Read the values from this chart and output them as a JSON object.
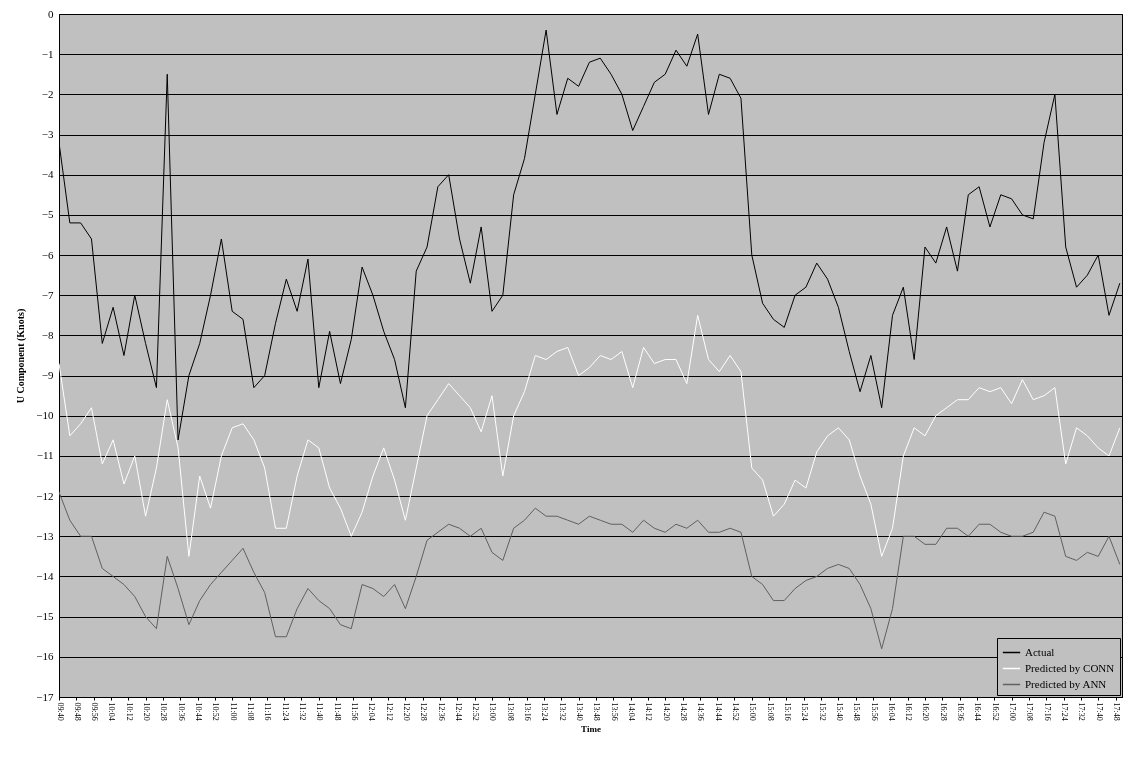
{
  "chart_data": {
    "type": "line",
    "xlabel": "Time",
    "ylabel": "U Component (Knots)",
    "x": [
      9.6667,
      9.75,
      9.8333,
      9.9167,
      10,
      10.0833,
      10.1667,
      10.25,
      10.3333,
      10.4167,
      10.5,
      10.5833,
      10.6667,
      10.75,
      10.8333,
      10.9167,
      11,
      11.0833,
      11.1667,
      11.25,
      11.3333,
      11.4167,
      11.5,
      11.5833,
      11.6667,
      11.75,
      11.8333,
      11.9167,
      12,
      12.0833,
      12.1667,
      12.25,
      12.3333,
      12.4167,
      12.5,
      12.5833,
      12.6667,
      12.75,
      12.8333,
      12.9167,
      13,
      13.0833,
      13.1667,
      13.25,
      13.3333,
      13.4167,
      13.5,
      13.5833,
      13.6667,
      13.75,
      13.8333,
      13.9167,
      14,
      14.0833,
      14.1667,
      14.25,
      14.3333,
      14.4167,
      14.5,
      14.5833,
      14.6667,
      14.75,
      14.8333,
      14.9167,
      15,
      15.0833,
      15.1667,
      15.25,
      15.3333,
      15.4167,
      15.5,
      15.5833,
      15.6667,
      15.75,
      15.8333,
      15.9167,
      16,
      16.0833,
      16.1667,
      16.25,
      16.3333,
      16.4167,
      16.5,
      16.5833,
      16.6667,
      16.75,
      16.8333,
      16.9167,
      17,
      17.0833,
      17.1667,
      17.25,
      17.3333,
      17.4167,
      17.5,
      17.5833,
      17.6667,
      17.75,
      17.8333
    ],
    "series": [
      {
        "name": "Actual",
        "color": "#000000",
        "values": [
          -3.2,
          -5.2,
          -5.2,
          -5.6,
          -8.2,
          -7.3,
          -8.5,
          -7.0,
          -8.2,
          -9.3,
          -1.5,
          -10.6,
          -9,
          -8.2,
          -7,
          -5.6,
          -7.4,
          -7.6,
          -9.3,
          -9,
          -7.7,
          -6.6,
          -7.4,
          -6.1,
          -9.3,
          -7.9,
          -9.2,
          -8.1,
          -6.3,
          -7,
          -7.9,
          -8.6,
          -9.8,
          -6.4,
          -5.8,
          -4.3,
          -4,
          -5.6,
          -6.7,
          -5.3,
          -7.4,
          -7,
          -4.5,
          -3.6,
          -2,
          -0.4,
          -2.5,
          -1.6,
          -1.8,
          -1.2,
          -1.1,
          -1.5,
          -2,
          -2.9,
          -2.3,
          -1.7,
          -1.5,
          -0.9,
          -1.3,
          -0.5,
          -2.5,
          -1.5,
          -1.6,
          -2.1,
          -6,
          -7.2,
          -7.6,
          -7.8,
          -7,
          -6.8,
          -6.2,
          -6.6,
          -7.3,
          -8.4,
          -9.4,
          -8.5,
          -9.8,
          -7.5,
          -6.8,
          -8.6,
          -5.8,
          -6.2,
          -5.3,
          -6.4,
          -4.5,
          -4.3,
          -5.3,
          -4.5,
          -4.6,
          -5,
          -5.1,
          -3.2,
          -2,
          -5.8,
          -6.8,
          -6.5,
          -6,
          -7.5,
          -6.7
        ]
      },
      {
        "name": "Predicted by CONN",
        "color": "#ffffff",
        "values": [
          -8.7,
          -10.5,
          -10.2,
          -9.8,
          -11.2,
          -10.6,
          -11.7,
          -11,
          -12.5,
          -11.3,
          -9.6,
          -10.8,
          -13.5,
          -11.5,
          -12.3,
          -11,
          -10.3,
          -10.2,
          -10.6,
          -11.3,
          -12.8,
          -12.8,
          -11.5,
          -10.6,
          -10.8,
          -11.8,
          -12.3,
          -13,
          -12.4,
          -11.5,
          -10.8,
          -11.6,
          -12.6,
          -11.3,
          -10,
          -9.6,
          -9.2,
          -9.5,
          -9.8,
          -10.4,
          -9.5,
          -11.5,
          -10,
          -9.4,
          -8.5,
          -8.6,
          -8.4,
          -8.3,
          -9,
          -8.8,
          -8.5,
          -8.6,
          -8.4,
          -9.3,
          -8.3,
          -8.7,
          -8.6,
          -8.6,
          -9.2,
          -7.5,
          -8.6,
          -8.9,
          -8.5,
          -8.9,
          -11.3,
          -11.6,
          -12.5,
          -12.2,
          -11.6,
          -11.8,
          -10.9,
          -10.5,
          -10.3,
          -10.6,
          -11.5,
          -12.2,
          -13.5,
          -12.8,
          -11,
          -10.3,
          -10.5,
          -10,
          -9.8,
          -9.6,
          -9.6,
          -9.3,
          -9.4,
          -9.3,
          -9.7,
          -9.1,
          -9.6,
          -9.5,
          -9.3,
          -11.2,
          -10.3,
          -10.5,
          -10.8,
          -11,
          -10.3
        ]
      },
      {
        "name": "Predicted by ANN",
        "color": "#606060",
        "values": [
          -11.9,
          -12.6,
          -13,
          -13,
          -13.8,
          -14,
          -14.2,
          -14.5,
          -15,
          -15.3,
          -13.5,
          -14.3,
          -15.2,
          -14.6,
          -14.2,
          -13.9,
          -13.6,
          -13.3,
          -13.9,
          -14.4,
          -15.5,
          -15.5,
          -14.8,
          -14.3,
          -14.6,
          -14.8,
          -15.2,
          -15.3,
          -14.2,
          -14.3,
          -14.5,
          -14.2,
          -14.8,
          -14,
          -13.1,
          -12.9,
          -12.7,
          -12.8,
          -13,
          -12.8,
          -13.4,
          -13.6,
          -12.8,
          -12.6,
          -12.3,
          -12.5,
          -12.5,
          -12.6,
          -12.7,
          -12.5,
          -12.6,
          -12.7,
          -12.7,
          -12.9,
          -12.6,
          -12.8,
          -12.9,
          -12.7,
          -12.8,
          -12.6,
          -12.9,
          -12.9,
          -12.8,
          -12.9,
          -14,
          -14.2,
          -14.6,
          -14.6,
          -14.3,
          -14.1,
          -14,
          -13.8,
          -13.7,
          -13.8,
          -14.2,
          -14.8,
          -15.8,
          -14.8,
          -13,
          -13,
          -13.2,
          -13.2,
          -12.8,
          -12.8,
          -13,
          -12.7,
          -12.7,
          -12.9,
          -13,
          -13,
          -12.9,
          -12.4,
          -12.5,
          -13.5,
          -13.6,
          -13.4,
          -13.5,
          -13,
          -13.7
        ]
      }
    ],
    "xlim": [
      9.6667,
      17.85
    ],
    "xticks": [
      {
        "value": 9.6667,
        "label": "09:40"
      },
      {
        "value": 9.8,
        "label": "09:48"
      },
      {
        "value": 9.9333,
        "label": "09:56"
      },
      {
        "value": 10.0667,
        "label": "10:04"
      },
      {
        "value": 10.2,
        "label": "10:12"
      },
      {
        "value": 10.3333,
        "label": "10:20"
      },
      {
        "value": 10.4667,
        "label": "10:28"
      },
      {
        "value": 10.6,
        "label": "10:36"
      },
      {
        "value": 10.7333,
        "label": "10:44"
      },
      {
        "value": 10.8667,
        "label": "10:52"
      },
      {
        "value": 11,
        "label": "11:00"
      },
      {
        "value": 11.1333,
        "label": "11:08"
      },
      {
        "value": 11.2667,
        "label": "11:16"
      },
      {
        "value": 11.4,
        "label": "11:24"
      },
      {
        "value": 11.5333,
        "label": "11:32"
      },
      {
        "value": 11.6667,
        "label": "11:40"
      },
      {
        "value": 11.8,
        "label": "11:48"
      },
      {
        "value": 11.9333,
        "label": "11:56"
      },
      {
        "value": 12.0667,
        "label": "12:04"
      },
      {
        "value": 12.2,
        "label": "12:12"
      },
      {
        "value": 12.3333,
        "label": "12:20"
      },
      {
        "value": 12.4667,
        "label": "12:28"
      },
      {
        "value": 12.6,
        "label": "12:36"
      },
      {
        "value": 12.7333,
        "label": "12:44"
      },
      {
        "value": 12.8667,
        "label": "12:52"
      },
      {
        "value": 13,
        "label": "13:00"
      },
      {
        "value": 13.1333,
        "label": "13:08"
      },
      {
        "value": 13.2667,
        "label": "13:16"
      },
      {
        "value": 13.4,
        "label": "13:24"
      },
      {
        "value": 13.5333,
        "label": "13:32"
      },
      {
        "value": 13.6667,
        "label": "13:40"
      },
      {
        "value": 13.8,
        "label": "13:48"
      },
      {
        "value": 13.9333,
        "label": "13:56"
      },
      {
        "value": 14.0667,
        "label": "14:04"
      },
      {
        "value": 14.2,
        "label": "14:12"
      },
      {
        "value": 14.3333,
        "label": "14:20"
      },
      {
        "value": 14.4667,
        "label": "14:28"
      },
      {
        "value": 14.6,
        "label": "14:36"
      },
      {
        "value": 14.7333,
        "label": "14:44"
      },
      {
        "value": 14.8667,
        "label": "14:52"
      },
      {
        "value": 15,
        "label": "15:00"
      },
      {
        "value": 15.1333,
        "label": "15:08"
      },
      {
        "value": 15.2667,
        "label": "15:16"
      },
      {
        "value": 15.4,
        "label": "15:24"
      },
      {
        "value": 15.5333,
        "label": "15:32"
      },
      {
        "value": 15.6667,
        "label": "15:40"
      },
      {
        "value": 15.8,
        "label": "15:48"
      },
      {
        "value": 15.9333,
        "label": "15:56"
      },
      {
        "value": 16.0667,
        "label": "16:04"
      },
      {
        "value": 16.2,
        "label": "16:12"
      },
      {
        "value": 16.3333,
        "label": "16:20"
      },
      {
        "value": 16.4667,
        "label": "16:28"
      },
      {
        "value": 16.6,
        "label": "16:36"
      },
      {
        "value": 16.7333,
        "label": "16:44"
      },
      {
        "value": 16.8667,
        "label": "16:52"
      },
      {
        "value": 17,
        "label": "17:00"
      },
      {
        "value": 17.1333,
        "label": "17:08"
      },
      {
        "value": 17.2667,
        "label": "17:16"
      },
      {
        "value": 17.4,
        "label": "17:24"
      },
      {
        "value": 17.5333,
        "label": "17:32"
      },
      {
        "value": 17.6667,
        "label": "17:40"
      },
      {
        "value": 17.8,
        "label": "17:48"
      }
    ],
    "ylim": [
      -17,
      0
    ],
    "yticks": [
      0,
      -1,
      -2,
      -3,
      -4,
      -5,
      -6,
      -7,
      -8,
      -9,
      -10,
      -11,
      -12,
      -13,
      -14,
      -15,
      -16,
      -17
    ],
    "grid": "y",
    "legend": "bottom right",
    "line_style": "solid"
  }
}
